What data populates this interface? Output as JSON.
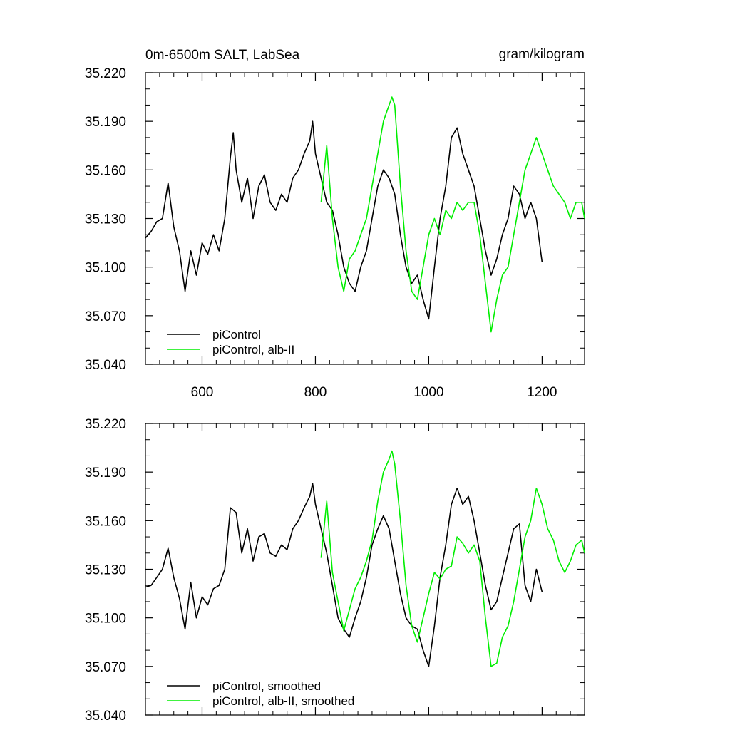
{
  "colors": {
    "control": "#000000",
    "albII": "#00ee00",
    "axis": "#000000",
    "background": "#ffffff"
  },
  "chart_data": [
    {
      "type": "line",
      "title_left": "0m-6500m SALT, LabSea",
      "title_right": "gram/kilogram",
      "xlim": [
        500,
        1275
      ],
      "ylim": [
        35.04,
        35.22
      ],
      "xticks": [
        600,
        800,
        1000,
        1200
      ],
      "xtick_labels": [
        "600",
        "800",
        "1000",
        "1200"
      ],
      "yticks": [
        35.04,
        35.07,
        35.1,
        35.13,
        35.16,
        35.19,
        35.22
      ],
      "ytick_labels": [
        "35.040",
        "35.070",
        "35.100",
        "35.130",
        "35.160",
        "35.190",
        "35.220"
      ],
      "legend": {
        "placement": "bottom-left",
        "entries": [
          "piControl",
          "piControl, alb-II"
        ]
      },
      "series": [
        {
          "name": "piControl",
          "color": "#000000",
          "x": [
            500,
            510,
            520,
            530,
            540,
            550,
            560,
            570,
            580,
            590,
            600,
            610,
            620,
            630,
            640,
            650,
            655,
            660,
            670,
            680,
            690,
            700,
            710,
            720,
            730,
            740,
            750,
            760,
            770,
            780,
            790,
            795,
            800,
            810,
            820,
            830,
            840,
            850,
            860,
            870,
            880,
            890,
            900,
            910,
            920,
            930,
            940,
            950,
            960,
            970,
            980,
            990,
            1000,
            1010,
            1020,
            1030,
            1040,
            1050,
            1060,
            1070,
            1080,
            1090,
            1100,
            1110,
            1120,
            1130,
            1140,
            1150,
            1160,
            1170,
            1180,
            1190,
            1200
          ],
          "values": [
            35.118,
            35.122,
            35.128,
            35.13,
            35.152,
            35.125,
            35.11,
            35.085,
            35.11,
            35.095,
            35.115,
            35.108,
            35.12,
            35.11,
            35.13,
            35.168,
            35.183,
            35.16,
            35.14,
            35.155,
            35.13,
            35.15,
            35.157,
            35.14,
            35.135,
            35.145,
            35.14,
            35.155,
            35.16,
            35.17,
            35.178,
            35.19,
            35.17,
            35.155,
            35.14,
            35.135,
            35.12,
            35.1,
            35.09,
            35.085,
            35.1,
            35.11,
            35.13,
            35.15,
            35.16,
            35.155,
            35.145,
            35.12,
            35.1,
            35.09,
            35.095,
            35.08,
            35.068,
            35.1,
            35.13,
            35.15,
            35.18,
            35.186,
            35.17,
            35.16,
            35.15,
            35.13,
            35.11,
            35.095,
            35.105,
            35.12,
            35.13,
            35.15,
            35.145,
            35.13,
            35.14,
            35.13,
            35.103
          ]
        },
        {
          "name": "piControl, alb-II",
          "color": "#00ee00",
          "x": [
            810,
            820,
            830,
            840,
            850,
            860,
            870,
            880,
            890,
            900,
            910,
            920,
            930,
            935,
            940,
            950,
            960,
            970,
            980,
            990,
            1000,
            1010,
            1020,
            1030,
            1040,
            1050,
            1060,
            1070,
            1080,
            1090,
            1100,
            1110,
            1120,
            1130,
            1140,
            1150,
            1160,
            1170,
            1180,
            1190,
            1200,
            1210,
            1220,
            1230,
            1240,
            1250,
            1260,
            1270,
            1275
          ],
          "values": [
            35.14,
            35.175,
            35.13,
            35.1,
            35.085,
            35.105,
            35.11,
            35.12,
            35.13,
            35.15,
            35.17,
            35.19,
            35.2,
            35.205,
            35.2,
            35.15,
            35.11,
            35.085,
            35.08,
            35.1,
            35.12,
            35.13,
            35.12,
            35.135,
            35.13,
            35.14,
            35.135,
            35.14,
            35.14,
            35.12,
            35.09,
            35.06,
            35.08,
            35.095,
            35.1,
            35.12,
            35.14,
            35.16,
            35.17,
            35.18,
            35.17,
            35.16,
            35.15,
            35.145,
            35.14,
            35.13,
            35.14,
            35.14,
            35.13
          ]
        }
      ]
    },
    {
      "type": "line",
      "xlim": [
        500,
        1275
      ],
      "ylim": [
        35.04,
        35.22
      ],
      "xticks": [
        600,
        800,
        1000,
        1200
      ],
      "yticks": [
        35.04,
        35.07,
        35.1,
        35.13,
        35.16,
        35.19,
        35.22
      ],
      "ytick_labels": [
        "35.040",
        "35.070",
        "35.100",
        "35.130",
        "35.160",
        "35.190",
        "35.220"
      ],
      "legend": {
        "placement": "bottom-left",
        "entries": [
          "piControl, smoothed",
          "piControl, alb-II, smoothed"
        ]
      },
      "series": [
        {
          "name": "piControl, smoothed",
          "color": "#000000",
          "x": [
            500,
            510,
            520,
            530,
            540,
            550,
            560,
            570,
            580,
            590,
            600,
            610,
            620,
            630,
            640,
            650,
            660,
            670,
            680,
            690,
            700,
            710,
            720,
            730,
            740,
            750,
            760,
            770,
            780,
            790,
            795,
            800,
            810,
            820,
            830,
            840,
            850,
            860,
            870,
            880,
            890,
            900,
            910,
            920,
            930,
            940,
            950,
            960,
            970,
            980,
            990,
            1000,
            1010,
            1020,
            1030,
            1040,
            1050,
            1060,
            1070,
            1080,
            1090,
            1100,
            1110,
            1120,
            1130,
            1140,
            1150,
            1160,
            1170,
            1180,
            1190,
            1200
          ],
          "values": [
            35.119,
            35.12,
            35.125,
            35.13,
            35.143,
            35.125,
            35.112,
            35.093,
            35.122,
            35.1,
            35.113,
            35.108,
            35.118,
            35.12,
            35.13,
            35.168,
            35.165,
            35.14,
            35.155,
            35.135,
            35.15,
            35.152,
            35.14,
            35.138,
            35.145,
            35.142,
            35.155,
            35.16,
            35.168,
            35.175,
            35.183,
            35.17,
            35.155,
            35.14,
            35.12,
            35.1,
            35.093,
            35.088,
            35.1,
            35.11,
            35.125,
            35.145,
            35.155,
            35.163,
            35.155,
            35.135,
            35.115,
            35.1,
            35.095,
            35.093,
            35.08,
            35.07,
            35.095,
            35.125,
            35.145,
            35.17,
            35.18,
            35.17,
            35.175,
            35.16,
            35.14,
            35.12,
            35.105,
            35.11,
            35.125,
            35.14,
            35.155,
            35.158,
            35.12,
            35.11,
            35.13,
            35.116
          ]
        },
        {
          "name": "piControl, alb-II, smoothed",
          "color": "#00ee00",
          "x": [
            810,
            820,
            830,
            840,
            850,
            860,
            870,
            880,
            890,
            900,
            910,
            920,
            930,
            935,
            940,
            950,
            960,
            970,
            980,
            990,
            1000,
            1010,
            1020,
            1030,
            1040,
            1050,
            1060,
            1070,
            1080,
            1090,
            1100,
            1110,
            1120,
            1130,
            1140,
            1150,
            1160,
            1170,
            1180,
            1190,
            1200,
            1210,
            1220,
            1230,
            1240,
            1250,
            1260,
            1270,
            1275
          ],
          "values": [
            35.137,
            35.172,
            35.128,
            35.11,
            35.092,
            35.105,
            35.118,
            35.125,
            35.135,
            35.148,
            35.172,
            35.19,
            35.198,
            35.203,
            35.195,
            35.16,
            35.12,
            35.095,
            35.085,
            35.1,
            35.115,
            35.128,
            35.124,
            35.13,
            35.132,
            35.15,
            35.146,
            35.14,
            35.145,
            35.135,
            35.1,
            35.07,
            35.072,
            35.088,
            35.095,
            35.11,
            35.13,
            35.15,
            35.16,
            35.18,
            35.17,
            35.155,
            35.148,
            35.135,
            35.128,
            35.135,
            35.145,
            35.148,
            35.14
          ]
        }
      ]
    }
  ]
}
